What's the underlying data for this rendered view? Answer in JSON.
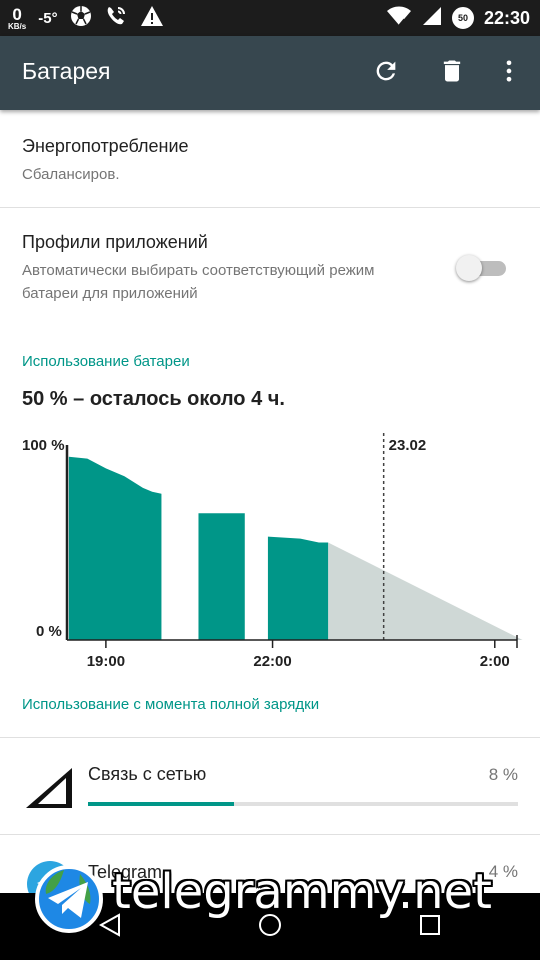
{
  "status_bar": {
    "net_speed": "0",
    "net_unit": "KB/s",
    "temperature": "-5°",
    "battery_level": "50",
    "time": "22:30"
  },
  "app_bar": {
    "title": "Батарея",
    "icons": [
      "refresh-icon",
      "delete-icon",
      "more-vert-icon"
    ]
  },
  "power_mode": {
    "title": "Энергопотребление",
    "value": "Сбалансиров."
  },
  "app_profiles": {
    "title": "Профили приложений",
    "description": "Автоматически выбирать соответствующий режим батареи для приложений",
    "enabled": false
  },
  "battery_usage": {
    "heading": "Использование батареи",
    "summary": "50 % – осталось около 4 ч."
  },
  "chart_data": {
    "type": "area",
    "y_labels": [
      "100 %",
      "0 %"
    ],
    "ylim": [
      0,
      100
    ],
    "x_ticks": [
      "19:00",
      "22:00",
      "2:00"
    ],
    "xlim_hours": [
      18.3,
      2.4
    ],
    "date_marker": "23.02",
    "accent": "#009688",
    "prediction_color": "#cfd8d6",
    "actual_segments": [
      [
        {
          "t": "18:20",
          "v": 94
        },
        {
          "t": "18:40",
          "v": 93
        },
        {
          "t": "19:00",
          "v": 88
        },
        {
          "t": "19:20",
          "v": 84
        },
        {
          "t": "19:40",
          "v": 78
        },
        {
          "t": "19:50",
          "v": 76
        },
        {
          "t": "20:00",
          "v": 75
        }
      ],
      [
        {
          "t": "20:40",
          "v": 65
        },
        {
          "t": "21:30",
          "v": 65
        }
      ],
      [
        {
          "t": "21:55",
          "v": 53
        },
        {
          "t": "22:30",
          "v": 52
        },
        {
          "t": "22:50",
          "v": 50
        },
        {
          "t": "23:00",
          "v": 50
        }
      ]
    ],
    "prediction": [
      {
        "t": "23:00",
        "v": 50
      },
      {
        "t": "2:30",
        "v": 0
      }
    ]
  },
  "since_full_charge": {
    "heading": "Использование с момента полной зарядки",
    "apps": [
      {
        "name": "Связь с сетью",
        "percent": "8 %",
        "fraction": 0.34,
        "icon": "cell-signal-icon"
      },
      {
        "name": "Telegram",
        "percent": "4 %",
        "fraction": 0.17,
        "icon": "telegram-icon"
      }
    ]
  },
  "watermark": {
    "text": "telegrammy.net"
  },
  "nav_bar": {
    "icons": [
      "back-icon",
      "home-icon",
      "recents-icon"
    ]
  }
}
